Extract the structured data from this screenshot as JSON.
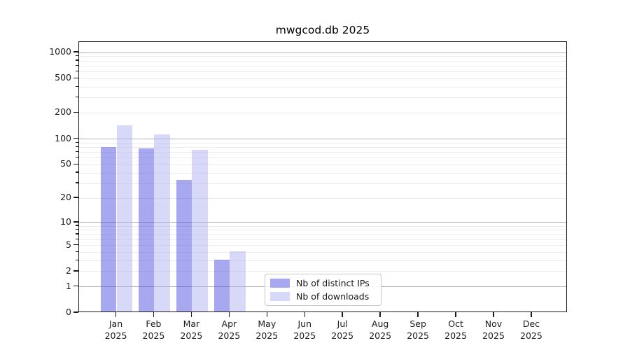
{
  "chart_data": {
    "type": "bar",
    "title": "mwgcod.db 2025",
    "categories": [
      "Jan",
      "Feb",
      "Mar",
      "Apr",
      "May",
      "Jun",
      "Jul",
      "Aug",
      "Sep",
      "Oct",
      "Nov",
      "Dec"
    ],
    "category_year": "2025",
    "series": [
      {
        "name": "Nb of distinct IPs",
        "color": "rgba(81,81,225,0.5)",
        "values": [
          78,
          76,
          32,
          3,
          0,
          0,
          0,
          0,
          0,
          0,
          0,
          0
        ]
      },
      {
        "name": "Nb of downloads",
        "color": "rgba(177,177,241,0.5)",
        "values": [
          140,
          110,
          72,
          4,
          0,
          0,
          0,
          0,
          0,
          0,
          0,
          0
        ]
      }
    ],
    "y_axis": {
      "scale": "log1p",
      "labeled_ticks": [
        0,
        1,
        2,
        5,
        10,
        20,
        50,
        100,
        200,
        500,
        1000
      ],
      "major_gridlines": [
        1,
        10,
        100,
        1000
      ],
      "ylim": [
        0,
        1000
      ]
    },
    "legend_position": "lower-center",
    "grid": true
  },
  "colors": {
    "bar_ips": "rgba(81,81,225,0.5)",
    "bar_downloads": "rgba(177,177,241,0.5)",
    "major_grid": "#b2b2b2",
    "minor_grid": "#ebebeb",
    "axis": "#1a1a1a",
    "legend_border": "#c9c9c9"
  }
}
